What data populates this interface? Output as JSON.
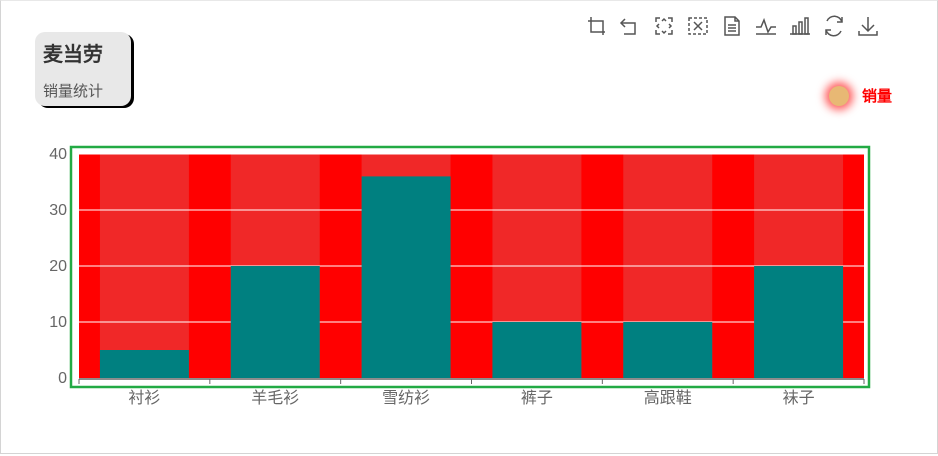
{
  "title": "麦当劳",
  "subtitle": "销量统计",
  "legend": {
    "label": "销量",
    "marker_color": "#e8b874"
  },
  "toolbox": [
    {
      "name": "zoom-icon",
      "glyph": "zoom"
    },
    {
      "name": "zoom-reset-icon",
      "glyph": "back"
    },
    {
      "name": "restore-icon",
      "glyph": "restore-frame"
    },
    {
      "name": "brush-clear-icon",
      "glyph": "clear"
    },
    {
      "name": "data-view-icon",
      "glyph": "doc"
    },
    {
      "name": "line-chart-icon",
      "glyph": "line"
    },
    {
      "name": "bar-chart-icon",
      "glyph": "bar"
    },
    {
      "name": "refresh-icon",
      "glyph": "refresh"
    },
    {
      "name": "save-image-icon",
      "glyph": "download"
    }
  ],
  "colors": {
    "plot_background": "#ff0000",
    "category_band": "#f02828",
    "bar": "#008080",
    "grid_border": "#22aa44",
    "axis": "#666666",
    "text": "#666666"
  },
  "chart_data": {
    "type": "bar",
    "title": "麦当劳",
    "subtitle": "销量统计",
    "categories": [
      "衬衫",
      "羊毛衫",
      "雪纺衫",
      "裤子",
      "高跟鞋",
      "袜子"
    ],
    "series": [
      {
        "name": "销量",
        "values": [
          5,
          20,
          36,
          10,
          10,
          20
        ]
      }
    ],
    "ylim": [
      0,
      40
    ],
    "yticks": [
      0,
      10,
      20,
      30,
      40
    ],
    "grid": true,
    "legend_position": "top-right"
  }
}
